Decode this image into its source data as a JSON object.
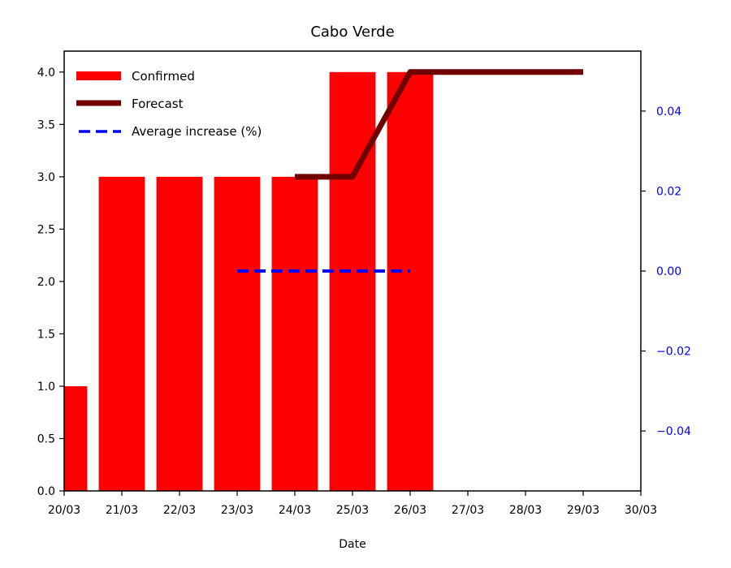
{
  "chart_data": {
    "type": "bar",
    "title": "Cabo Verde",
    "xlabel": "Date",
    "x_ticks": [
      "20/03",
      "21/03",
      "22/03",
      "23/03",
      "24/03",
      "25/03",
      "26/03",
      "27/03",
      "28/03",
      "29/03",
      "30/03"
    ],
    "y_left": {
      "lim": [
        0,
        4.2
      ],
      "ticks": [
        "0.0",
        "0.5",
        "1.0",
        "1.5",
        "2.0",
        "2.5",
        "3.0",
        "3.5",
        "4.0"
      ]
    },
    "y_right": {
      "lim": [
        -0.055,
        0.055
      ],
      "ticks": [
        "0.04",
        "0.02",
        "0.00",
        "−0.02",
        "−0.04"
      ],
      "tick_values": [
        0.04,
        0.02,
        0.0,
        -0.02,
        -0.04
      ],
      "color": "#0000ff"
    },
    "series": [
      {
        "name": "Confirmed",
        "kind": "bar",
        "axis": "left",
        "color": "#ff0000",
        "x": [
          "20/03",
          "21/03",
          "22/03",
          "23/03",
          "24/03",
          "25/03",
          "26/03"
        ],
        "values": [
          1,
          3,
          3,
          3,
          3,
          4,
          4
        ]
      },
      {
        "name": "Forecast",
        "kind": "line",
        "axis": "left",
        "color": "#700000",
        "x": [
          "24/03",
          "25/03",
          "26/03",
          "27/03",
          "28/03",
          "29/03"
        ],
        "values": [
          3,
          3,
          4,
          4,
          4,
          4
        ]
      },
      {
        "name": "Average increase (%)",
        "kind": "dashed-line",
        "axis": "right",
        "color": "#0000ff",
        "x": [
          "23/03",
          "26/03"
        ],
        "values": [
          0.0,
          0.0
        ]
      }
    ],
    "legend_position": "top-left",
    "grid": false
  }
}
